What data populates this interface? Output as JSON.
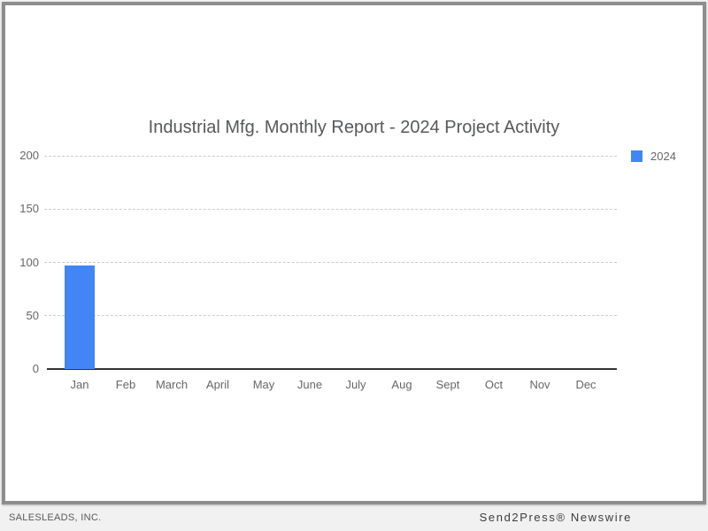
{
  "chart_data": {
    "type": "bar",
    "title": "Industrial Mfg. Monthly Report - 2024 Project Activity",
    "categories": [
      "Jan",
      "Feb",
      "March",
      "April",
      "May",
      "June",
      "July",
      "Aug",
      "Sept",
      "Oct",
      "Nov",
      "Dec"
    ],
    "series": [
      {
        "name": "2024",
        "color": "#4285f4",
        "values": [
          97,
          0,
          0,
          0,
          0,
          0,
          0,
          0,
          0,
          0,
          0,
          0
        ]
      }
    ],
    "xlabel": "",
    "ylabel": "",
    "ylim": [
      0,
      200
    ],
    "yticks": [
      0,
      50,
      100,
      150,
      200
    ],
    "grid": true,
    "grid_style": "dashed",
    "legend_position": "top-right"
  },
  "colors": {
    "bar": "#4285f4",
    "gridline": "#cccccc",
    "axis": "#333333",
    "title_text": "#56585a",
    "tick_text": "#666666",
    "frame_border": "#8d8d8d"
  },
  "footer": {
    "left": "SALESLEADS, INC.",
    "right": "Send2Press® Newswire"
  }
}
